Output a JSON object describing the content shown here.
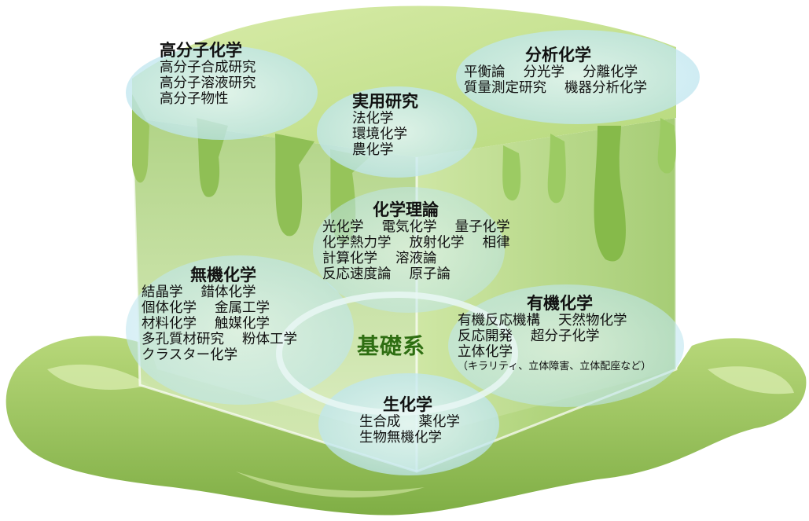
{
  "diagram": {
    "center_label": "基礎系",
    "colors": {
      "slime_light": "#c8e28a",
      "slime_mid": "#a9cf6a",
      "slime_dark": "#7fb14a",
      "bubble": "#bfe6ef",
      "center_text": "#2e6e12"
    },
    "groups": {
      "polymer": {
        "title": "高分子化学",
        "lines": [
          "高分子合成研究",
          "高分子溶液研究",
          "高分子物性"
        ]
      },
      "applied": {
        "title": "実用研究",
        "lines": [
          "法化学",
          "環境化学",
          "農化学"
        ]
      },
      "analytical": {
        "title": "分析化学",
        "lines": [
          "平衡論　 分光学　 分離化学",
          "質量測定研究　 機器分析化学"
        ]
      },
      "theory": {
        "title": "化学理論",
        "lines": [
          "光化学　 電気化学　 量子化学",
          "化学熱力学　 放射化学　 相律",
          "計算化学　 溶液論",
          "反応速度論　 原子論"
        ]
      },
      "inorganic": {
        "title": "無機化学",
        "lines": [
          "結晶学　 錯体化学",
          "個体化学　 金属工学",
          "材料化学　 触媒化学",
          "多孔質材研究　 粉体工学",
          "クラスター化学"
        ]
      },
      "organic": {
        "title": "有機化学",
        "lines": [
          "有機反応機構　 天然物化学",
          "反応開発　 超分子化学",
          "立体化学"
        ],
        "note": "（キラリティ、立体障害、立体配座など）"
      },
      "biochem": {
        "title": "生化学",
        "lines": [
          "生合成　 薬化学",
          "生物無機化学"
        ]
      }
    }
  }
}
